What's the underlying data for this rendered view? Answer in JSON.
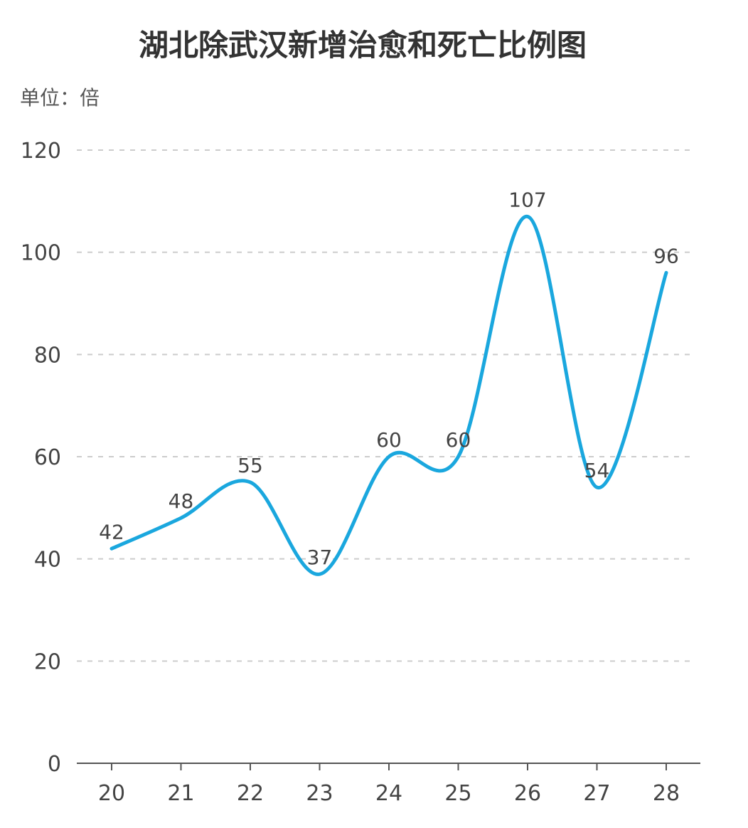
{
  "chart_data": {
    "type": "line",
    "title": "湖北除武汉新增治愈和死亡比例图",
    "unit_label": "单位：倍",
    "xlabel": "",
    "ylabel": "",
    "categories": [
      "20",
      "21",
      "22",
      "23",
      "24",
      "25",
      "26",
      "27",
      "28"
    ],
    "series": [
      {
        "values": [
          42,
          48,
          55,
          37,
          60,
          60,
          107,
          54,
          96
        ]
      }
    ],
    "ylim": [
      0,
      120
    ],
    "yticks": [
      "0",
      "20",
      "40",
      "60",
      "80",
      "100",
      "120"
    ],
    "grid": true,
    "line_color": "#1aa7de",
    "grid_color": "#cccccc",
    "smooth": true
  }
}
